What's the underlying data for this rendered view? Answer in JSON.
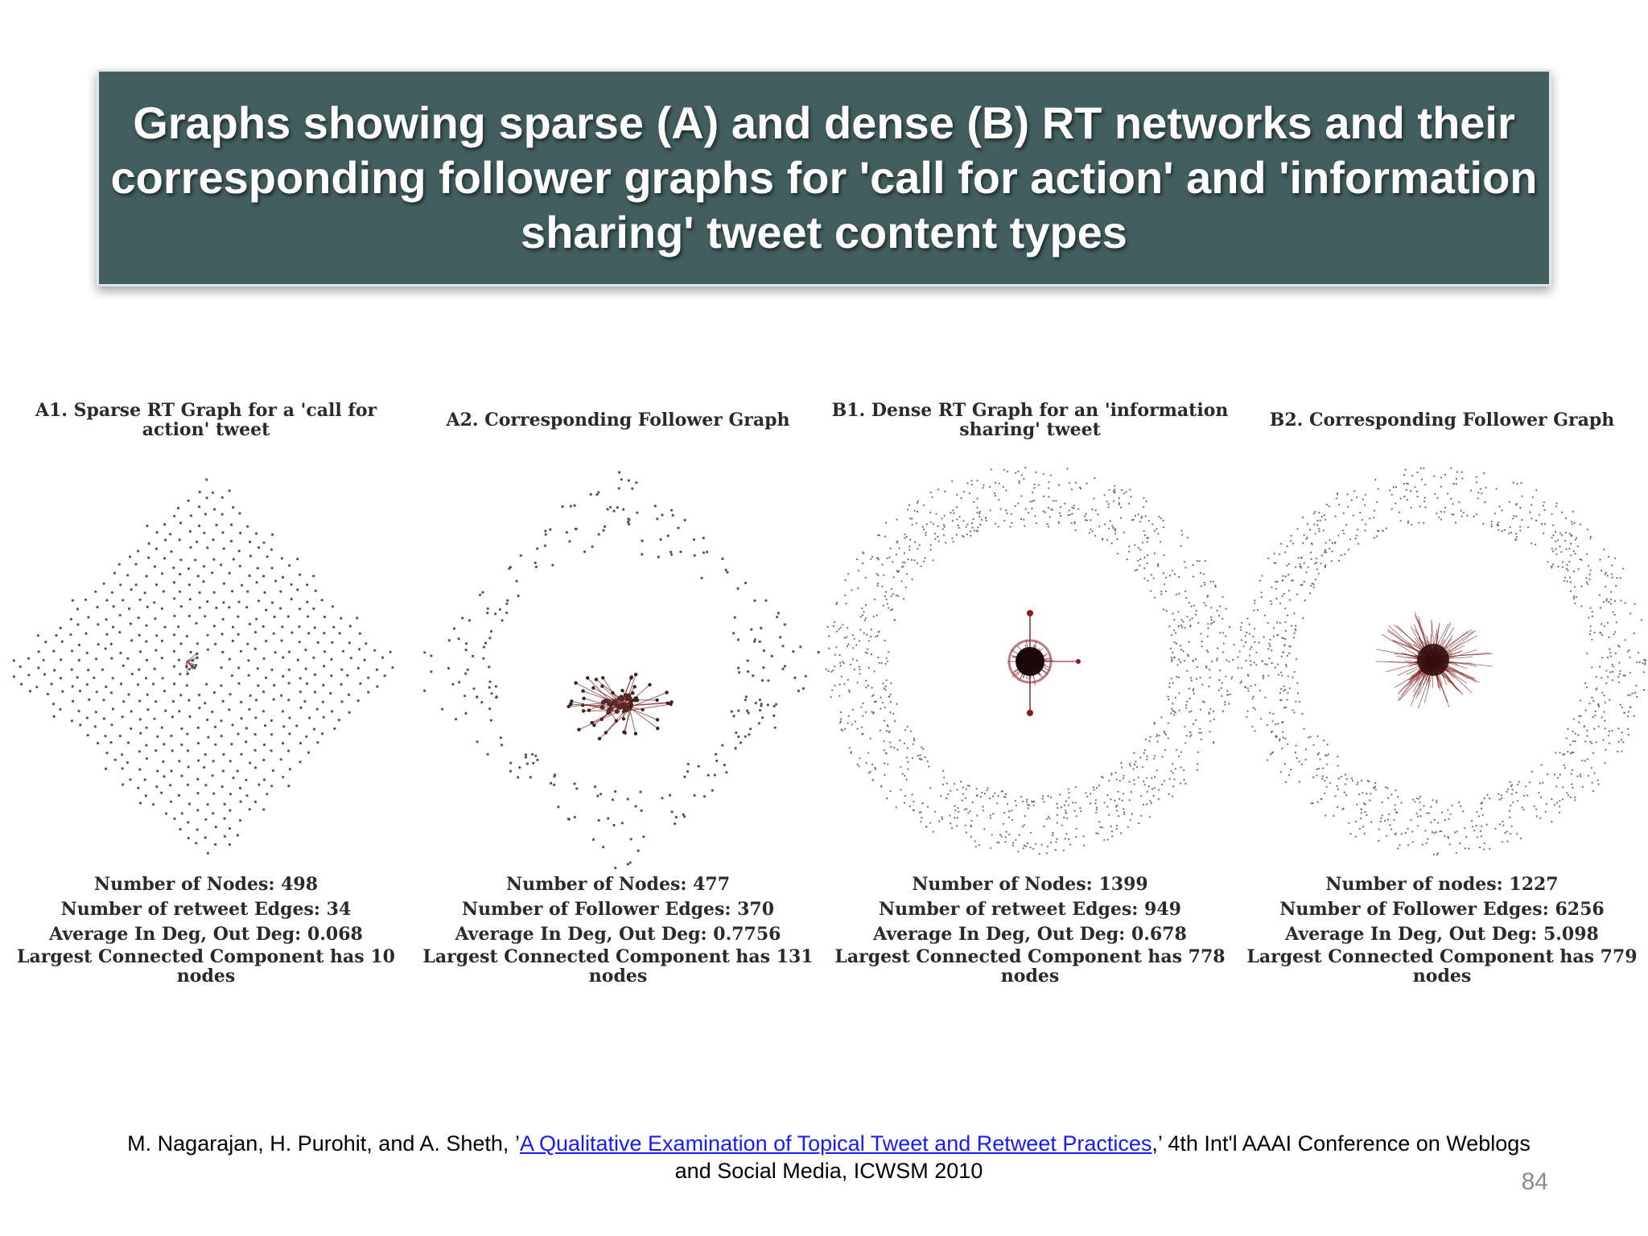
{
  "slide": {
    "title": "Graphs showing sparse (A) and dense (B) RT networks and their corresponding follower graphs for 'call for action' and 'information sharing' tweet content types",
    "page_number": "84"
  },
  "panels": [
    {
      "title": "A1. Sparse RT Graph for a 'call for action' tweet",
      "stats": [
        "Number of Nodes: 498",
        "Number of retweet Edges: 34",
        "Average In Deg, Out Deg: 0.068",
        "Largest Connected Component has 10 nodes"
      ]
    },
    {
      "title": "A2. Corresponding Follower Graph",
      "stats": [
        "Number of Nodes: 477",
        "Number of Follower Edges: 370",
        "Average In Deg, Out Deg: 0.7756",
        "Largest Connected Component has 131 nodes"
      ]
    },
    {
      "title": "B1. Dense RT Graph for an 'information sharing' tweet",
      "stats": [
        "Number of Nodes: 1399",
        "Number of retweet Edges: 949",
        "Average In Deg, Out Deg: 0.678",
        "Largest Connected Component has 778 nodes"
      ]
    },
    {
      "title": "B2. Corresponding Follower Graph",
      "stats": [
        "Number of nodes: 1227",
        "Number of Follower Edges: 6256",
        "Average In Deg, Out Deg: 5.098",
        "Largest Connected Component has 779 nodes"
      ]
    }
  ],
  "citation": {
    "authors": "M. Nagarajan, H. Purohit, and A. Sheth,  ’",
    "link_text": "A Qualitative Examination of Topical Tweet and Retweet Practices",
    "rest_line1": ",’ 4th Int'l AAAI Conference on Weblogs",
    "rest_line2": "and Social Media, ICWSM 2010"
  },
  "colors": {
    "title_bg": "#435e5f",
    "node": "#555555",
    "edge": "#7a2020",
    "link": "#1a1aff"
  }
}
